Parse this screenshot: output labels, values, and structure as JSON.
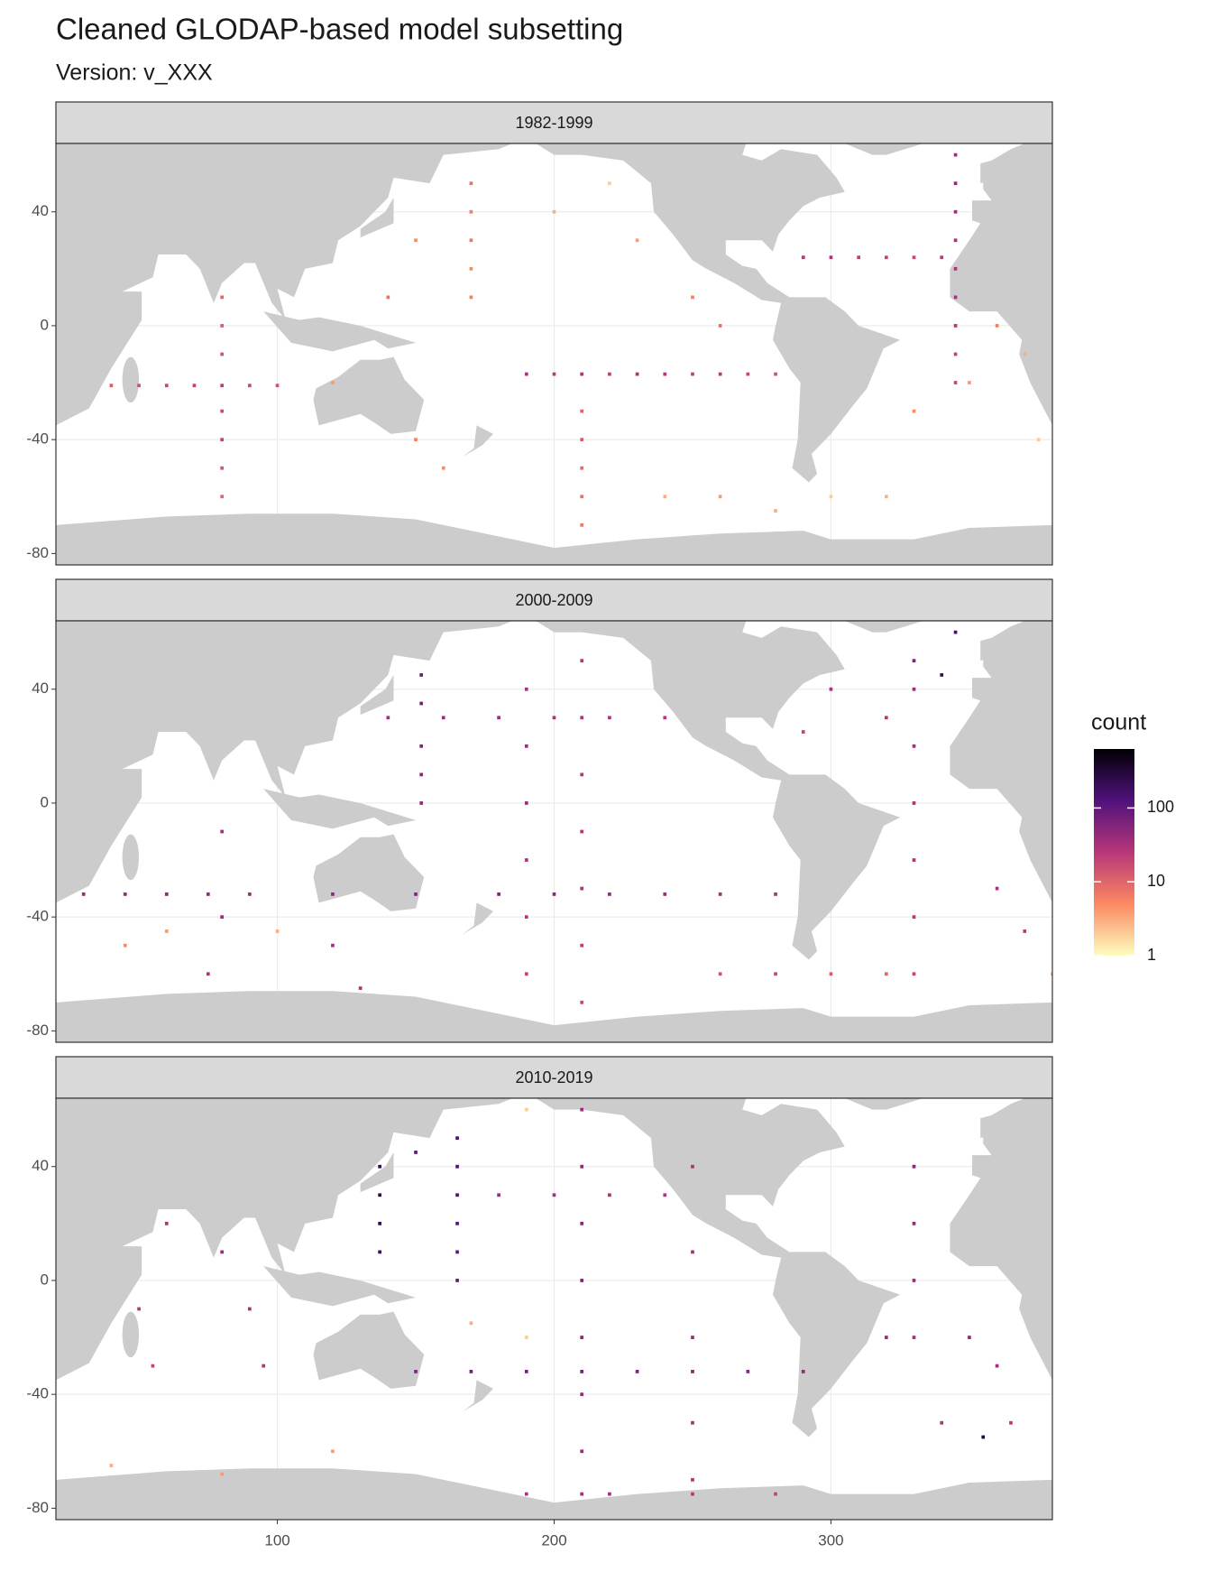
{
  "chart_data": {
    "type": "tile",
    "title": "Cleaned GLODAP-based model subsetting",
    "subtitle": "Version: v_XXX",
    "xlim": [
      20,
      380
    ],
    "xticks": [
      100,
      200,
      300
    ],
    "ylim": [
      -84,
      64
    ],
    "yticks": [
      -80,
      -40,
      0,
      40
    ],
    "grid": true,
    "legend": {
      "title": "count",
      "position": "right",
      "scale": "log",
      "limits": [
        1,
        630
      ],
      "ticks": [
        1,
        10,
        100
      ],
      "colors": [
        "#fcfdbf",
        "#fc8961",
        "#b73779",
        "#51127c",
        "#000004"
      ]
    },
    "panels": [
      {
        "label": "1982-1999",
        "lon": [
          40,
          50,
          60,
          70,
          80,
          90,
          100,
          80,
          80,
          80,
          80,
          80,
          80,
          80,
          190,
          200,
          210,
          220,
          230,
          240,
          250,
          260,
          270,
          280,
          345,
          345,
          345,
          345,
          345,
          345,
          345,
          345,
          345,
          290,
          300,
          310,
          320,
          330,
          340,
          170,
          170,
          170,
          170,
          170,
          210,
          210,
          210,
          210,
          210,
          240,
          260,
          280,
          300,
          320,
          330,
          350,
          360,
          370,
          375,
          150,
          140,
          120,
          150,
          160,
          260,
          250,
          230,
          200,
          220
        ],
        "lat": [
          -21,
          -21,
          -21,
          -21,
          -21,
          -21,
          -21,
          10,
          0,
          -10,
          -30,
          -40,
          -50,
          -60,
          -17,
          -17,
          -17,
          -17,
          -17,
          -17,
          -17,
          -17,
          -17,
          -17,
          60,
          50,
          40,
          30,
          20,
          10,
          0,
          -10,
          -20,
          24,
          24,
          24,
          24,
          24,
          24,
          50,
          40,
          30,
          20,
          10,
          -30,
          -40,
          -50,
          -60,
          -70,
          -60,
          -60,
          -65,
          -60,
          -60,
          -30,
          -20,
          0,
          -10,
          -40,
          30,
          10,
          -20,
          -40,
          -50,
          0,
          10,
          30,
          40,
          50
        ],
        "count": [
          12,
          15,
          18,
          20,
          22,
          18,
          15,
          10,
          12,
          14,
          16,
          20,
          14,
          10,
          30,
          25,
          28,
          22,
          30,
          26,
          20,
          24,
          18,
          15,
          40,
          45,
          35,
          30,
          28,
          32,
          25,
          20,
          18,
          25,
          30,
          22,
          20,
          18,
          25,
          8,
          6,
          7,
          5,
          6,
          10,
          12,
          9,
          8,
          7,
          3,
          4,
          3,
          2,
          3,
          5,
          4,
          6,
          3,
          2,
          5,
          8,
          4,
          6,
          5,
          8,
          6,
          4,
          3,
          2
        ]
      },
      {
        "label": "2000-2009",
        "lon": [
          30,
          45,
          60,
          75,
          90,
          120,
          150,
          180,
          200,
          220,
          240,
          260,
          280,
          140,
          160,
          180,
          200,
          220,
          240,
          152,
          152,
          152,
          152,
          152,
          190,
          190,
          190,
          190,
          190,
          190,
          210,
          210,
          210,
          210,
          210,
          210,
          210,
          330,
          330,
          330,
          330,
          330,
          330,
          330,
          260,
          280,
          300,
          320,
          340,
          345,
          300,
          320,
          290,
          80,
          80,
          75,
          120,
          130,
          45,
          60,
          100,
          360,
          370,
          380
        ],
        "lat": [
          -32,
          -32,
          -32,
          -32,
          -32,
          -32,
          -32,
          -32,
          -32,
          -32,
          -32,
          -32,
          -32,
          30,
          30,
          30,
          30,
          30,
          30,
          45,
          35,
          20,
          10,
          0,
          40,
          20,
          0,
          -20,
          -40,
          -60,
          50,
          30,
          10,
          -10,
          -30,
          -50,
          -70,
          50,
          40,
          20,
          0,
          -20,
          -40,
          -60,
          -60,
          -60,
          -60,
          -60,
          45,
          60,
          40,
          30,
          25,
          -10,
          -40,
          -60,
          -50,
          -65,
          -50,
          -45,
          -45,
          -30,
          -45,
          -60
        ],
        "count": [
          40,
          45,
          50,
          45,
          40,
          50,
          55,
          60,
          50,
          45,
          40,
          35,
          30,
          35,
          40,
          38,
          30,
          28,
          25,
          80,
          70,
          60,
          50,
          45,
          30,
          35,
          40,
          30,
          25,
          20,
          25,
          30,
          28,
          26,
          30,
          22,
          18,
          60,
          40,
          35,
          30,
          30,
          25,
          20,
          15,
          18,
          12,
          10,
          200,
          150,
          30,
          25,
          20,
          35,
          40,
          30,
          35,
          30,
          5,
          4,
          3,
          30,
          25,
          3
        ]
      },
      {
        "label": "2010-2019",
        "lon": [
          150,
          170,
          190,
          210,
          230,
          250,
          270,
          290,
          137,
          137,
          137,
          137,
          165,
          165,
          165,
          165,
          165,
          165,
          150,
          180,
          200,
          220,
          240,
          210,
          210,
          210,
          210,
          210,
          210,
          210,
          210,
          250,
          250,
          250,
          250,
          250,
          330,
          330,
          330,
          330,
          190,
          220,
          250,
          280,
          60,
          50,
          55,
          80,
          90,
          95,
          320,
          350,
          360,
          340,
          365,
          355,
          170,
          190,
          120,
          40,
          80,
          190
        ],
        "lat": [
          -32,
          -32,
          -32,
          -32,
          -32,
          -32,
          -32,
          -32,
          40,
          30,
          20,
          10,
          50,
          40,
          30,
          20,
          10,
          0,
          45,
          30,
          30,
          30,
          30,
          60,
          40,
          20,
          0,
          -20,
          -40,
          -60,
          -75,
          40,
          10,
          -20,
          -50,
          -70,
          40,
          20,
          0,
          -20,
          -75,
          -75,
          -75,
          -75,
          20,
          -10,
          -30,
          10,
          -10,
          -30,
          -20,
          -20,
          -30,
          -50,
          -50,
          -55,
          -15,
          -20,
          -60,
          -65,
          -68,
          60
        ],
        "count": [
          60,
          70,
          65,
          70,
          60,
          55,
          50,
          45,
          200,
          250,
          220,
          180,
          150,
          120,
          130,
          110,
          100,
          90,
          100,
          40,
          35,
          30,
          28,
          40,
          45,
          50,
          55,
          50,
          45,
          40,
          35,
          30,
          35,
          40,
          35,
          30,
          50,
          45,
          40,
          35,
          30,
          35,
          25,
          20,
          30,
          25,
          20,
          40,
          35,
          30,
          40,
          45,
          35,
          30,
          25,
          300,
          3,
          2,
          4,
          3,
          4,
          2
        ]
      }
    ]
  }
}
